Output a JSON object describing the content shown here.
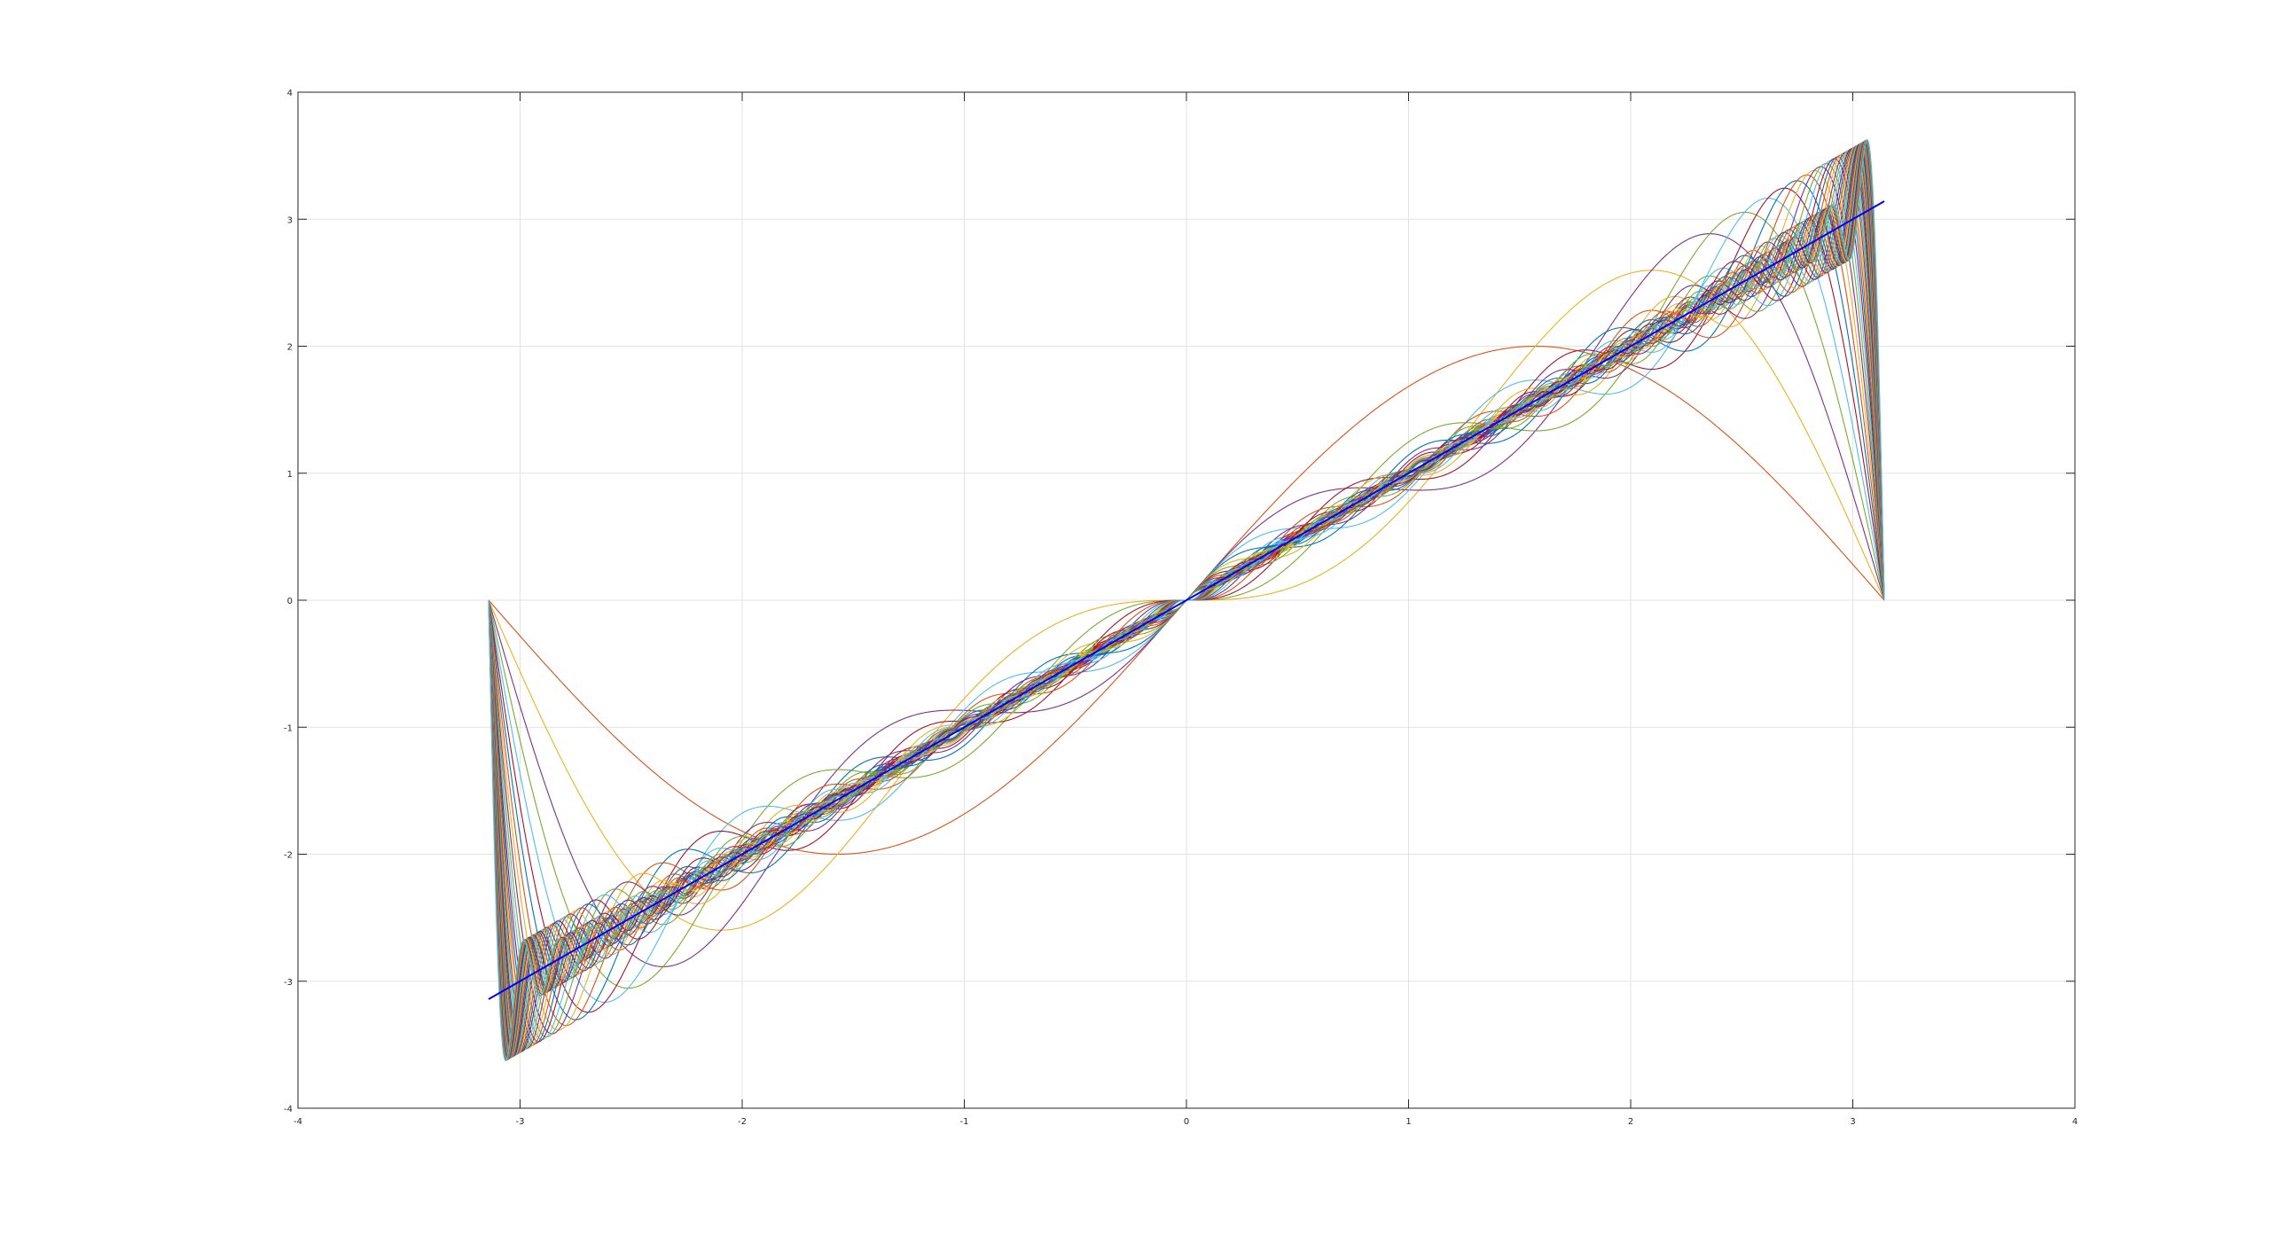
{
  "chart_data": {
    "type": "line",
    "title": "",
    "xlabel": "",
    "ylabel": "",
    "xlim": [
      -4,
      4
    ],
    "ylim": [
      -4,
      4
    ],
    "grid": true,
    "x_ticks": [
      -4,
      -3,
      -2,
      -1,
      0,
      1,
      2,
      3,
      4
    ],
    "y_ticks": [
      -4,
      -3,
      -2,
      -1,
      0,
      1,
      2,
      3,
      4
    ],
    "x_tick_labels": [
      "-4",
      "-3",
      "-2",
      "-1",
      "0",
      "1",
      "2",
      "3",
      "4"
    ],
    "y_tick_labels": [
      "-4",
      "-3",
      "-2",
      "-1",
      "0",
      "1",
      "2",
      "3",
      "4"
    ],
    "x_range": [
      -3.14159,
      3.14159
    ],
    "series": [
      {
        "expression": "partial Fourier sums of f(x)=x, N = 1 … 40",
        "n_min": 1,
        "n_max": 40
      },
      {
        "expression": "y = x",
        "color": "#0000ff"
      }
    ],
    "palette": [
      "#0072bd",
      "#d95319",
      "#edb120",
      "#7e2f8e",
      "#77ac30",
      "#4dbeee",
      "#a2142f"
    ]
  }
}
